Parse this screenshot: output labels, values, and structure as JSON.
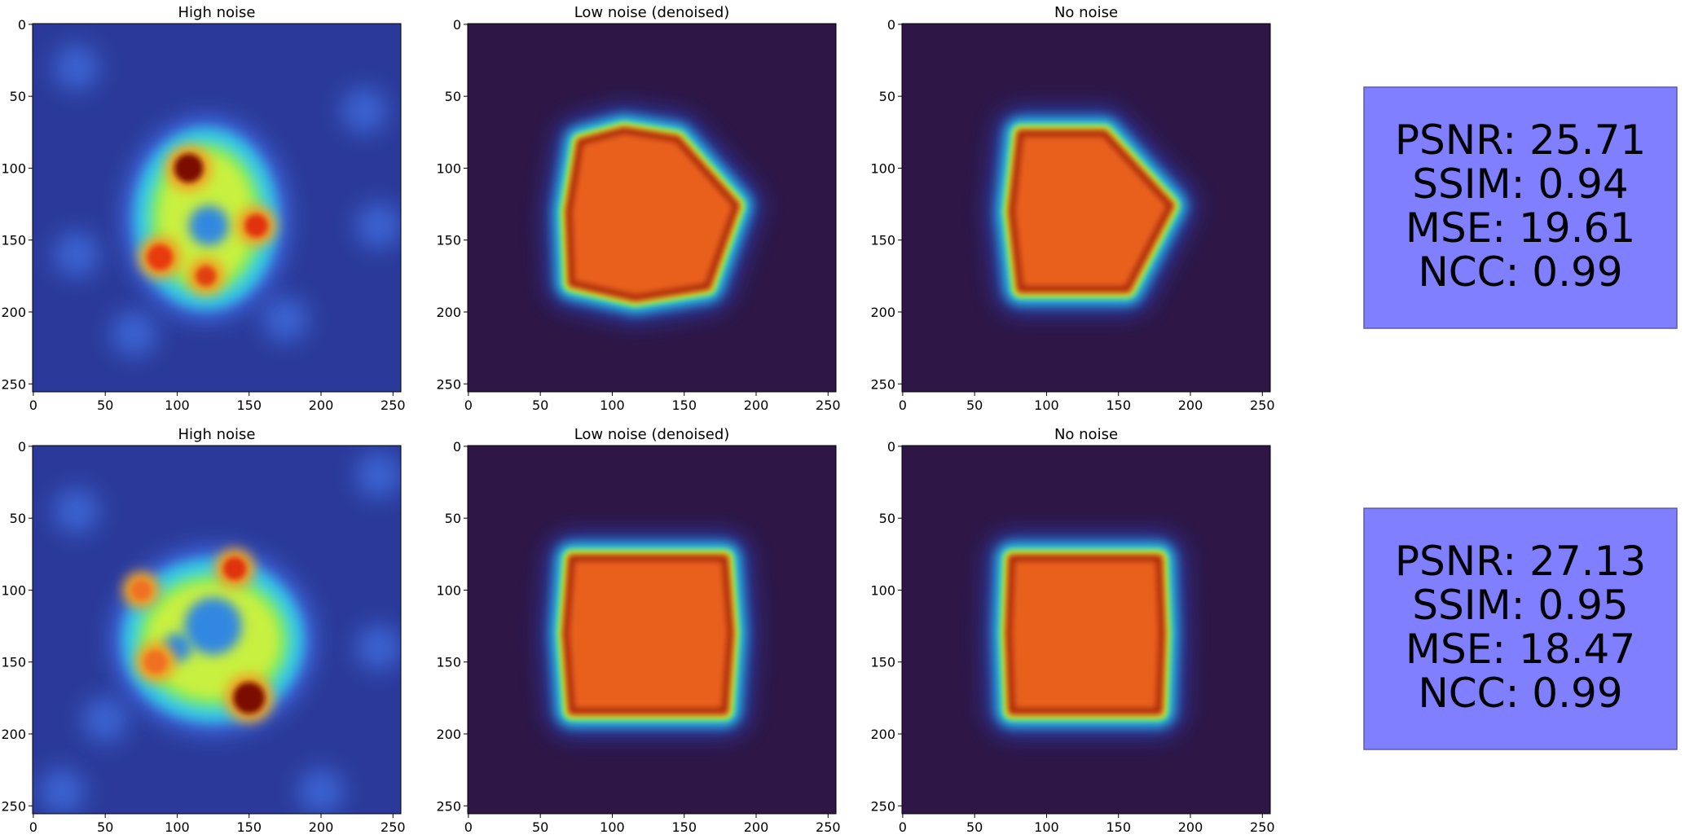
{
  "xlim": [
    -0.5,
    255.5
  ],
  "ylim": [
    -0.5,
    255.5
  ],
  "rows": [
    {
      "panels": [
        {
          "title": "High noise",
          "xticks": [
            0,
            50,
            100,
            150,
            200,
            250
          ],
          "yticks": [
            0,
            50,
            100,
            150,
            200,
            250
          ]
        },
        {
          "title": "Low noise (denoised)",
          "xticks": [
            0,
            50,
            100,
            150,
            200,
            250
          ],
          "yticks": [
            0,
            50,
            100,
            150,
            200,
            250
          ]
        },
        {
          "title": "No noise",
          "xticks": [
            0,
            50,
            100,
            150,
            200,
            250
          ],
          "yticks": [
            0,
            50,
            100,
            150,
            200,
            250
          ]
        }
      ],
      "metrics": [
        "PSNR: 25.71",
        "SSIM: 0.94",
        "MSE: 19.61",
        "NCC: 0.99"
      ]
    },
    {
      "panels": [
        {
          "title": "High noise",
          "xticks": [
            0,
            50,
            100,
            150,
            200,
            250
          ],
          "yticks": [
            0,
            50,
            100,
            150,
            200,
            250
          ]
        },
        {
          "title": "Low noise (denoised)",
          "xticks": [
            0,
            50,
            100,
            150,
            200,
            250
          ],
          "yticks": [
            0,
            50,
            100,
            150,
            200,
            250
          ]
        },
        {
          "title": "No noise",
          "xticks": [
            0,
            50,
            100,
            150,
            200,
            250
          ],
          "yticks": [
            0,
            50,
            100,
            150,
            200,
            250
          ]
        }
      ],
      "metrics": [
        "PSNR: 27.13",
        "SSIM: 0.95",
        "MSE: 18.47",
        "NCC: 0.99"
      ]
    }
  ]
}
